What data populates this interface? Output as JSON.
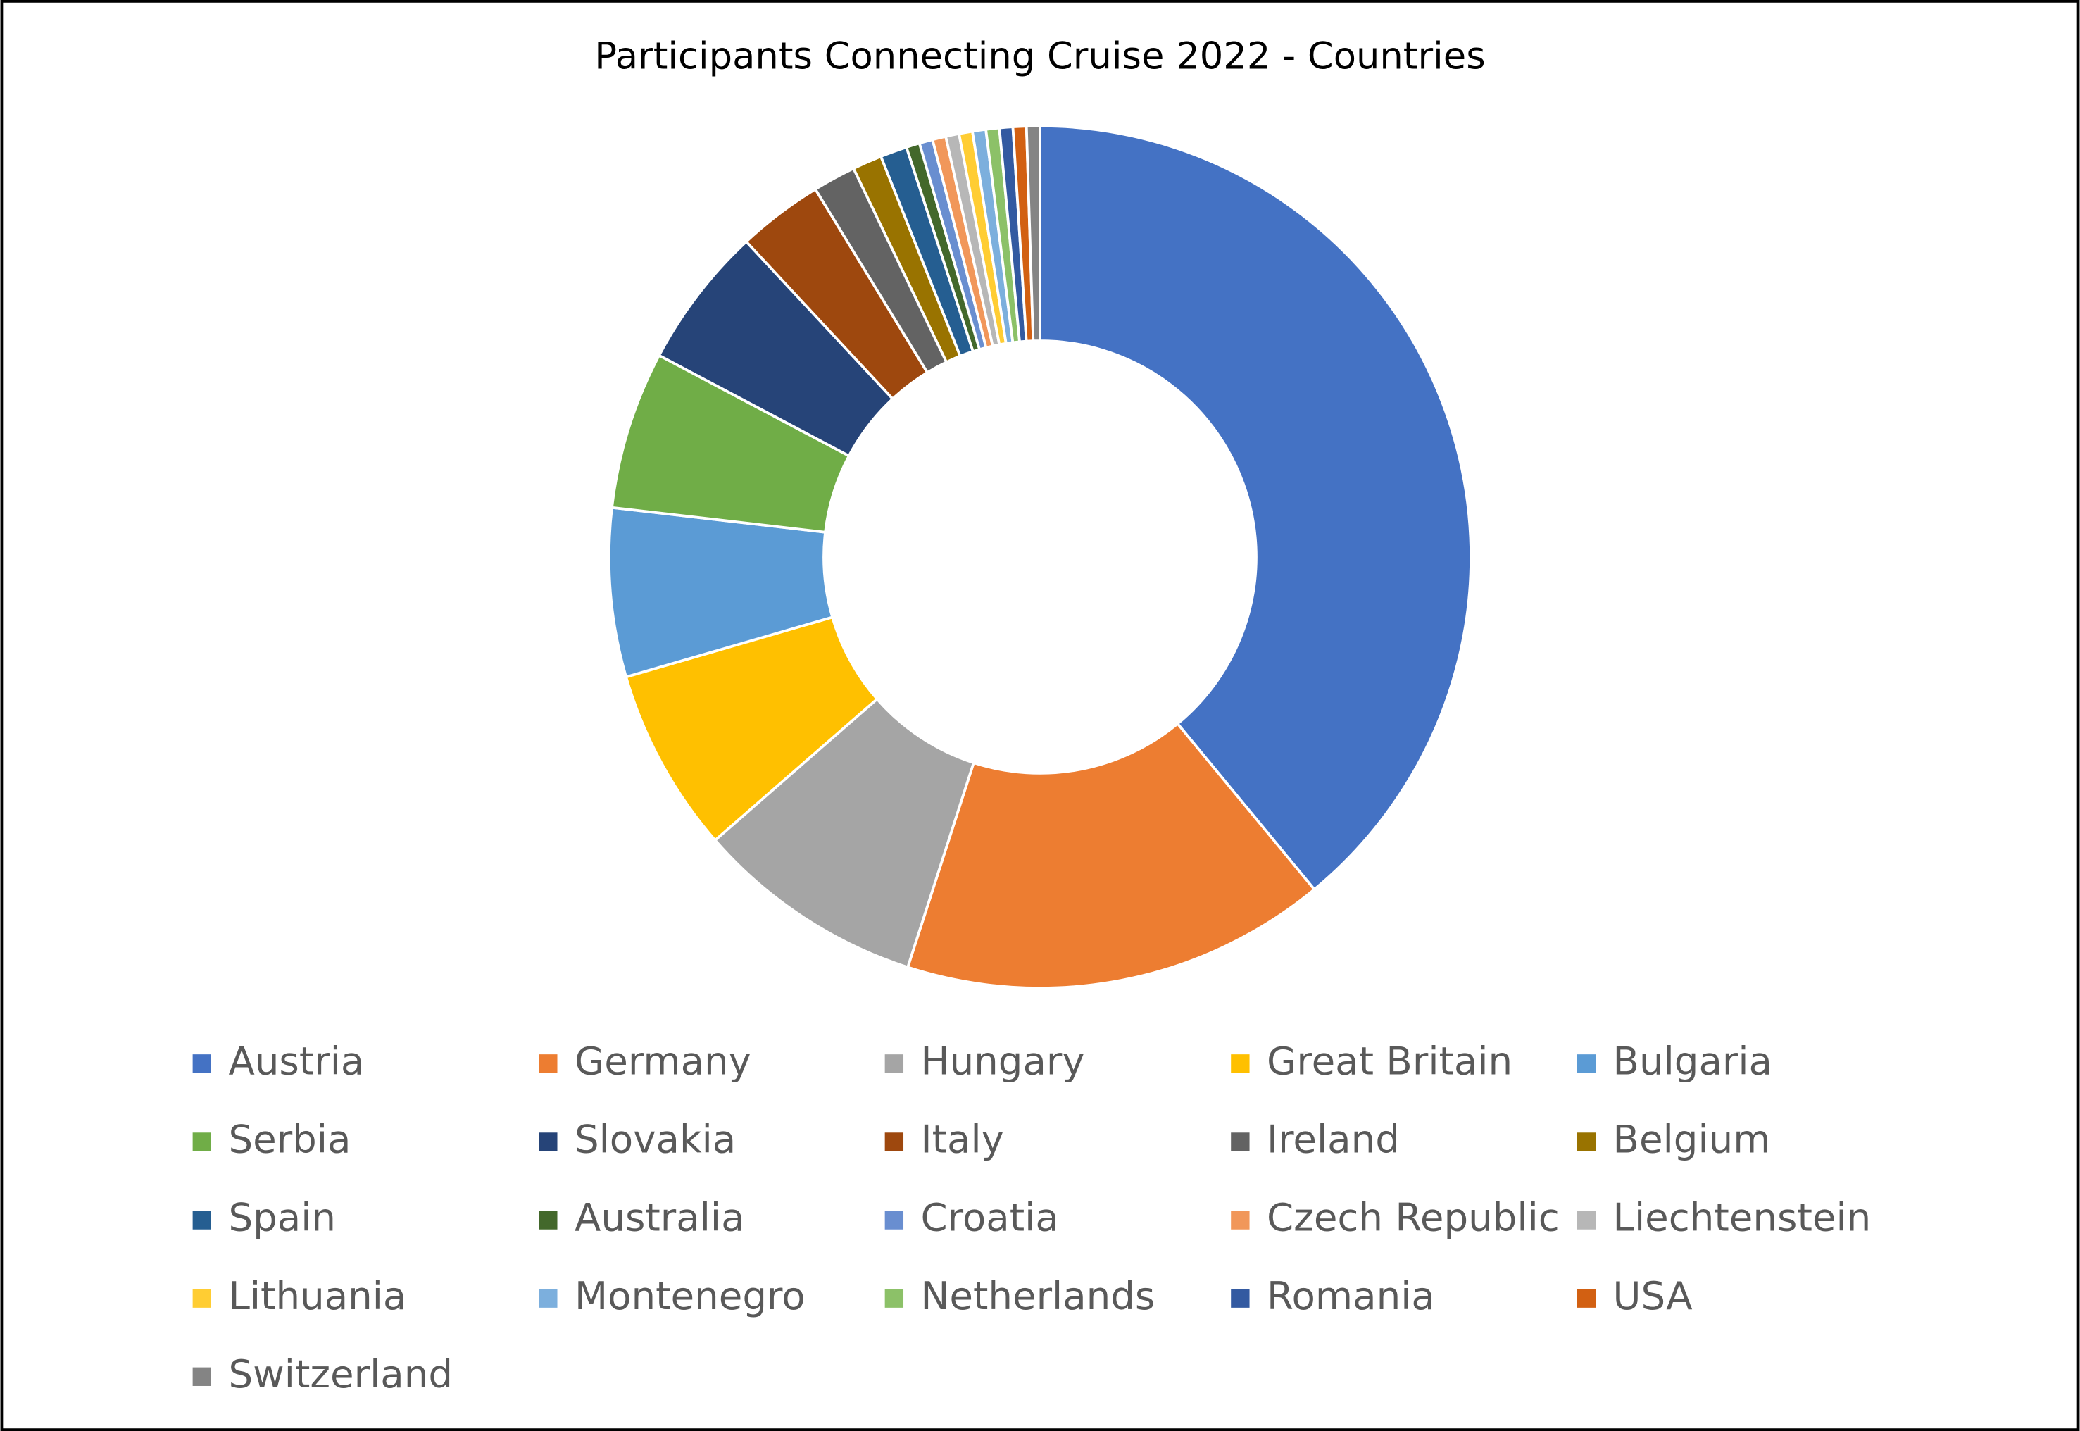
{
  "chart_data": {
    "type": "donut",
    "title": "Participants Connecting Cruise 2022 - Countries",
    "categories": [
      "Austria",
      "Germany",
      "Hungary",
      "Great Britain",
      "Bulgaria",
      "Serbia",
      "Slovakia",
      "Italy",
      "Ireland",
      "Belgium",
      "Spain",
      "Australia",
      "Croatia",
      "Czech Republic",
      "Liechtenstein",
      "Lithuania",
      "Montenegro",
      "Netherlands",
      "Romania",
      "USA",
      "Switzerland"
    ],
    "values": [
      38.9,
      15.9,
      8.6,
      6.9,
      6.3,
      5.9,
      5.3,
      3.2,
      1.6,
      1.1,
      1.0,
      0.5,
      0.5,
      0.5,
      0.5,
      0.5,
      0.5,
      0.5,
      0.5,
      0.5,
      0.5
    ],
    "colors": [
      "#4472C4",
      "#ED7D31",
      "#A5A5A5",
      "#FFC000",
      "#5B9BD5",
      "#70AD47",
      "#264478",
      "#9E480E",
      "#636363",
      "#997300",
      "#255E91",
      "#43682B",
      "#698ED0",
      "#F1975A",
      "#B7B7B7",
      "#FFCD33",
      "#7CAFDD",
      "#8CC168",
      "#335AA1",
      "#D26012",
      "#848484"
    ],
    "legend": "bottom"
  }
}
